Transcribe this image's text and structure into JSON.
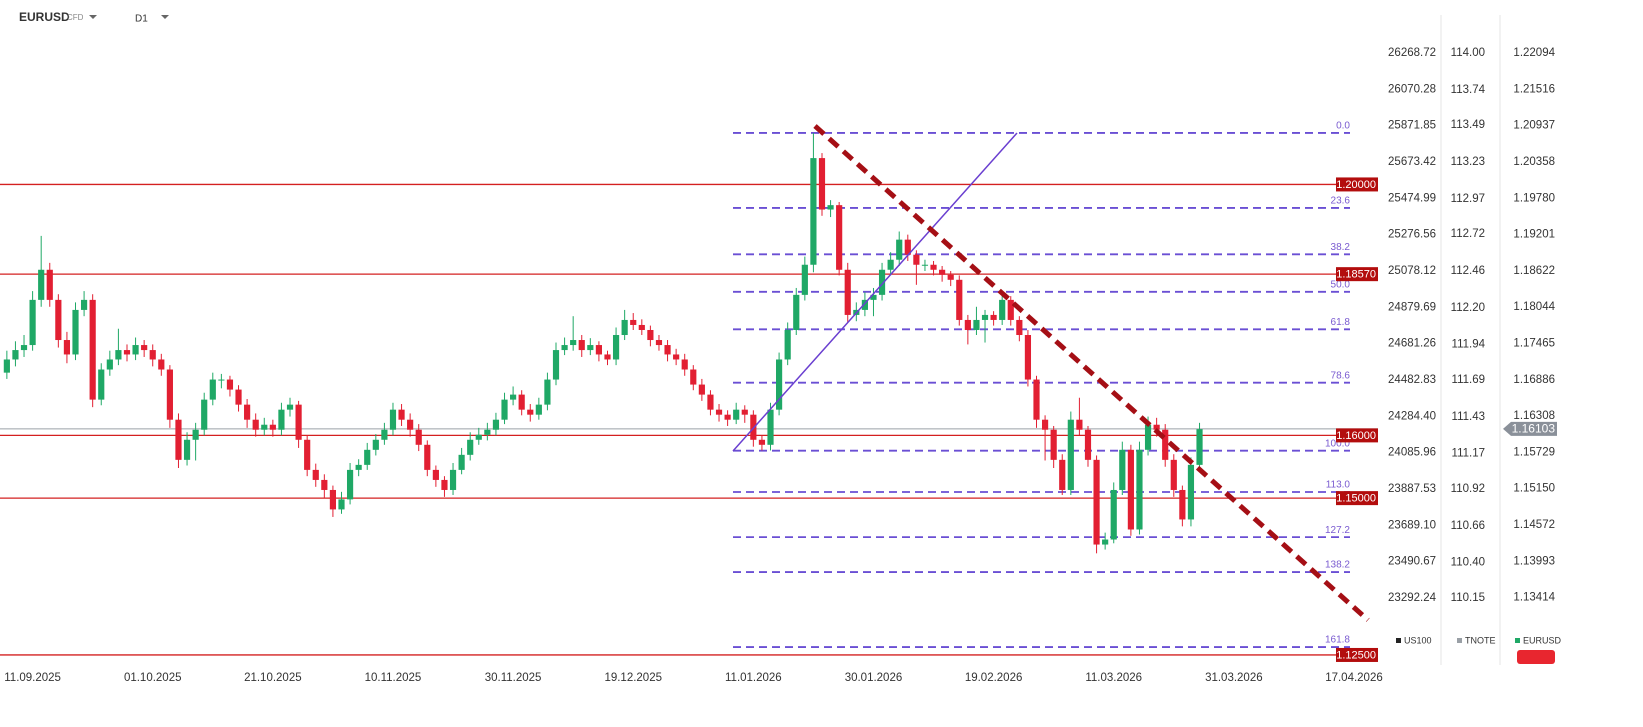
{
  "chart_data": {
    "type": "candlestick",
    "symbol": "EURUSD",
    "symbol_type": "CFD",
    "timeframe": "D1",
    "up_color": "#1fa866",
    "down_color": "#e21f32",
    "xlim": [
      -0.8,
      159.8
    ],
    "xticks": [
      {
        "value": 3,
        "label": "11.09.2025"
      },
      {
        "value": 17,
        "label": "01.10.2025"
      },
      {
        "value": 31,
        "label": "21.10.2025"
      },
      {
        "value": 45,
        "label": "10.11.2025"
      },
      {
        "value": 59,
        "label": "30.11.2025"
      },
      {
        "value": 73,
        "label": "19.12.2025"
      },
      {
        "value": 87,
        "label": "11.01.2026"
      },
      {
        "value": 101,
        "label": "30.01.2026"
      },
      {
        "value": 115,
        "label": "19.02.2026"
      },
      {
        "value": 129,
        "label": "11.03.2026"
      },
      {
        "value": 143,
        "label": "31.03.2026"
      },
      {
        "value": 157,
        "label": "17.04.2026"
      }
    ],
    "ylim": [
      1.1234,
      1.2294
    ],
    "yticks": [
      1.22094,
      1.21516,
      1.20937,
      1.20358,
      {
        "value": 1.1978,
        "label": "1.19780"
      },
      1.19201,
      1.18622,
      1.18044,
      1.17465,
      1.16886,
      1.16308,
      1.15729,
      {
        "value": 1.1515,
        "label": "1.15150"
      },
      1.14572,
      1.13993,
      1.13414
    ],
    "other_axes": [
      {
        "name": "US100",
        "color": "#222222",
        "ylim": [
          22926.3,
          26558.2
        ],
        "ticks": [
          26268.72,
          26070.28,
          25871.85,
          25673.42,
          25474.99,
          25276.56,
          25078.12,
          24879.69,
          24681.26,
          24482.83,
          {
            "value": 24284.4,
            "label": "24284.40"
          },
          24085.96,
          23887.53,
          {
            "value": 23689.1,
            "label": "23689.10"
          },
          23490.67,
          23292.24
        ]
      },
      {
        "name": "TNOTE",
        "color": "#9aa0a6",
        "ylim": [
          109.677,
          114.374
        ],
        "ticks": [
          {
            "value": 114,
            "label": "114.00"
          },
          113.74,
          113.49,
          113.23,
          112.97,
          112.72,
          112.46,
          {
            "value": 112.2,
            "label": "112.20"
          },
          111.94,
          111.69,
          111.43,
          111.17,
          110.92,
          110.66,
          {
            "value": 110.4,
            "label": "110.40"
          },
          110.15
        ]
      }
    ],
    "current_price": 1.16103,
    "levels": [
      {
        "value": 1.2,
        "label": "1.20000"
      },
      {
        "value": 1.1857,
        "label": "1.18570"
      },
      {
        "value": 1.16,
        "label": "1.16000"
      },
      {
        "value": 1.15,
        "label": "1.15000"
      },
      {
        "value": 1.125,
        "label": "1.12500"
      }
    ],
    "fibonacci": {
      "high": 1.20821,
      "low": 1.15756,
      "levels": [
        {
          "value": 0,
          "label": "0.0"
        },
        23.6,
        38.2,
        {
          "value": 50,
          "label": "50.0"
        },
        61.8,
        78.6,
        {
          "value": 100,
          "label": "100.0"
        },
        {
          "value": 113,
          "label": "113.0"
        },
        127.2,
        138.2,
        161.8
      ]
    },
    "candles": [
      [
        1.17,
        1.1735,
        1.169,
        1.1721
      ],
      [
        1.1721,
        1.175,
        1.171,
        1.1736
      ],
      [
        1.1736,
        1.176,
        1.1725,
        1.1744
      ],
      [
        1.1744,
        1.183,
        1.1735,
        1.1816
      ],
      [
        1.1816,
        1.1918,
        1.1805,
        1.1864
      ],
      [
        1.1864,
        1.1875,
        1.1805,
        1.1816
      ],
      [
        1.1816,
        1.1825,
        1.174,
        1.1752
      ],
      [
        1.1752,
        1.1765,
        1.1715,
        1.1729
      ],
      [
        1.1729,
        1.1812,
        1.172,
        1.18
      ],
      [
        1.18,
        1.183,
        1.179,
        1.1816
      ],
      [
        1.1816,
        1.1825,
        1.1645,
        1.1657
      ],
      [
        1.1657,
        1.1715,
        1.1648,
        1.1705
      ],
      [
        1.1705,
        1.1735,
        1.1695,
        1.1721
      ],
      [
        1.1721,
        1.177,
        1.1712,
        1.1736
      ],
      [
        1.1736,
        1.1745,
        1.1718,
        1.1729
      ],
      [
        1.1729,
        1.1756,
        1.172,
        1.1744
      ],
      [
        1.1744,
        1.1752,
        1.1725,
        1.1736
      ],
      [
        1.1736,
        1.1745,
        1.171,
        1.1721
      ],
      [
        1.1721,
        1.173,
        1.1695,
        1.1705
      ],
      [
        1.1705,
        1.1712,
        1.1612,
        1.1625
      ],
      [
        1.1625,
        1.1635,
        1.1548,
        1.1561
      ],
      [
        1.1561,
        1.1605,
        1.1552,
        1.1593
      ],
      [
        1.1593,
        1.162,
        1.156,
        1.1609
      ],
      [
        1.1609,
        1.1668,
        1.16,
        1.1657
      ],
      [
        1.1657,
        1.17,
        1.1648,
        1.1689
      ],
      [
        1.1689,
        1.1698,
        1.1675,
        1.1689
      ],
      [
        1.1689,
        1.1695,
        1.1662,
        1.1673
      ],
      [
        1.1673,
        1.168,
        1.1638,
        1.1649
      ],
      [
        1.1649,
        1.1658,
        1.1612,
        1.1625
      ],
      [
        1.1625,
        1.1635,
        1.1598,
        1.1609
      ],
      [
        1.1609,
        1.1628,
        1.16,
        1.1617
      ],
      [
        1.1617,
        1.1625,
        1.1598,
        1.1609
      ],
      [
        1.1609,
        1.1652,
        1.16,
        1.1641
      ],
      [
        1.1641,
        1.166,
        1.163,
        1.1649
      ],
      [
        1.1649,
        1.1655,
        1.158,
        1.1593
      ],
      [
        1.1593,
        1.16,
        1.1535,
        1.1545
      ],
      [
        1.1545,
        1.1555,
        1.1518,
        1.1529
      ],
      [
        1.1529,
        1.1538,
        1.15,
        1.1513
      ],
      [
        1.1513,
        1.152,
        1.147,
        1.1482
      ],
      [
        1.1482,
        1.151,
        1.1475,
        1.1498
      ],
      [
        1.1498,
        1.1556,
        1.149,
        1.1545
      ],
      [
        1.1545,
        1.1562,
        1.1535,
        1.1553
      ],
      [
        1.1553,
        1.1588,
        1.1545,
        1.1577
      ],
      [
        1.1577,
        1.1602,
        1.1568,
        1.1593
      ],
      [
        1.1593,
        1.162,
        1.1585,
        1.1609
      ],
      [
        1.1609,
        1.1652,
        1.16,
        1.1641
      ],
      [
        1.1641,
        1.165,
        1.1615,
        1.1625
      ],
      [
        1.1625,
        1.1635,
        1.1598,
        1.1609
      ],
      [
        1.1609,
        1.1618,
        1.1575,
        1.1585
      ],
      [
        1.1585,
        1.1592,
        1.1535,
        1.1545
      ],
      [
        1.1545,
        1.1552,
        1.1518,
        1.1529
      ],
      [
        1.1529,
        1.1535,
        1.1502,
        1.1513
      ],
      [
        1.1513,
        1.1556,
        1.1505,
        1.1545
      ],
      [
        1.1545,
        1.158,
        1.1538,
        1.1569
      ],
      [
        1.1569,
        1.1605,
        1.156,
        1.1593
      ],
      [
        1.1593,
        1.1612,
        1.1585,
        1.1601
      ],
      [
        1.1601,
        1.162,
        1.1592,
        1.1609
      ],
      [
        1.1609,
        1.1636,
        1.16,
        1.1625
      ],
      [
        1.1625,
        1.1668,
        1.1618,
        1.1657
      ],
      [
        1.1657,
        1.1678,
        1.1648,
        1.1665
      ],
      [
        1.1665,
        1.1672,
        1.1632,
        1.1641
      ],
      [
        1.1641,
        1.165,
        1.1622,
        1.1633
      ],
      [
        1.1633,
        1.166,
        1.1625,
        1.1649
      ],
      [
        1.1649,
        1.17,
        1.164,
        1.1689
      ],
      [
        1.1689,
        1.1748,
        1.168,
        1.1736
      ],
      [
        1.1736,
        1.1756,
        1.1728,
        1.1744
      ],
      [
        1.1744,
        1.179,
        1.1735,
        1.1752
      ],
      [
        1.1752,
        1.176,
        1.1725,
        1.1736
      ],
      [
        1.1736,
        1.1755,
        1.1728,
        1.1744
      ],
      [
        1.1744,
        1.175,
        1.1718,
        1.1729
      ],
      [
        1.1729,
        1.1735,
        1.1712,
        1.1721
      ],
      [
        1.1721,
        1.1772,
        1.1712,
        1.176
      ],
      [
        1.176,
        1.18,
        1.1752,
        1.1784
      ],
      [
        1.1784,
        1.1795,
        1.1768,
        1.1776
      ],
      [
        1.1776,
        1.1785,
        1.176,
        1.1768
      ],
      [
        1.1768,
        1.1775,
        1.1742,
        1.1752
      ],
      [
        1.1752,
        1.176,
        1.1735,
        1.1744
      ],
      [
        1.1744,
        1.1752,
        1.1718,
        1.1729
      ],
      [
        1.1729,
        1.1738,
        1.1712,
        1.1721
      ],
      [
        1.1721,
        1.173,
        1.1695,
        1.1705
      ],
      [
        1.1705,
        1.1712,
        1.1672,
        1.1681
      ],
      [
        1.1681,
        1.169,
        1.1655,
        1.1665
      ],
      [
        1.1665,
        1.1672,
        1.1632,
        1.1641
      ],
      [
        1.1641,
        1.165,
        1.1622,
        1.1633
      ],
      [
        1.1633,
        1.164,
        1.1615,
        1.1625
      ],
      [
        1.1625,
        1.1652,
        1.1618,
        1.1641
      ],
      [
        1.1641,
        1.1648,
        1.162,
        1.1633
      ],
      [
        1.1633,
        1.164,
        1.1582,
        1.1593
      ],
      [
        1.1593,
        1.16,
        1.1576,
        1.1585
      ],
      [
        1.1585,
        1.1652,
        1.1576,
        1.1641
      ],
      [
        1.1641,
        1.1732,
        1.1632,
        1.1721
      ],
      [
        1.1721,
        1.178,
        1.1712,
        1.1768
      ],
      [
        1.1768,
        1.1835,
        1.176,
        1.1824
      ],
      [
        1.1824,
        1.1885,
        1.1815,
        1.1872
      ],
      [
        1.1872,
        1.2082,
        1.186,
        1.2042
      ],
      [
        1.2042,
        1.205,
        1.195,
        1.196
      ],
      [
        1.196,
        1.1975,
        1.1948,
        1.1967
      ],
      [
        1.1967,
        1.1972,
        1.1855,
        1.1864
      ],
      [
        1.1864,
        1.1875,
        1.178,
        1.1792
      ],
      [
        1.1792,
        1.1812,
        1.1782,
        1.18
      ],
      [
        1.18,
        1.1828,
        1.179,
        1.1816
      ],
      [
        1.1816,
        1.1835,
        1.179,
        1.1824
      ],
      [
        1.1824,
        1.1875,
        1.1815,
        1.1864
      ],
      [
        1.1864,
        1.1892,
        1.1855,
        1.188
      ],
      [
        1.188,
        1.1925,
        1.187,
        1.1912
      ],
      [
        1.1912,
        1.192,
        1.1878,
        1.1888
      ],
      [
        1.1888,
        1.1895,
        1.184,
        1.1872
      ],
      [
        1.1872,
        1.188,
        1.1862,
        1.1872
      ],
      [
        1.1872,
        1.1878,
        1.1855,
        1.1864
      ],
      [
        1.1864,
        1.187,
        1.1845,
        1.1856
      ],
      [
        1.1856,
        1.1862,
        1.1838,
        1.1848
      ],
      [
        1.1848,
        1.1855,
        1.1775,
        1.1784
      ],
      [
        1.1784,
        1.1792,
        1.1745,
        1.1768
      ],
      [
        1.1768,
        1.1805,
        1.176,
        1.1784
      ],
      [
        1.1784,
        1.18,
        1.1748,
        1.1792
      ],
      [
        1.1792,
        1.1798,
        1.1775,
        1.1784
      ],
      [
        1.1784,
        1.1828,
        1.1776,
        1.1816
      ],
      [
        1.1816,
        1.1822,
        1.1775,
        1.1784
      ],
      [
        1.1784,
        1.179,
        1.175,
        1.176
      ],
      [
        1.176,
        1.1768,
        1.1678,
        1.1689
      ],
      [
        1.1689,
        1.1695,
        1.1612,
        1.1625
      ],
      [
        1.1625,
        1.1632,
        1.156,
        1.1609
      ],
      [
        1.1609,
        1.1615,
        1.1548,
        1.1561
      ],
      [
        1.1561,
        1.157,
        1.1505,
        1.1513
      ],
      [
        1.1513,
        1.1638,
        1.1505,
        1.1625
      ],
      [
        1.1625,
        1.166,
        1.16,
        1.1609
      ],
      [
        1.1609,
        1.1615,
        1.155,
        1.1561
      ],
      [
        1.1561,
        1.1568,
        1.1412,
        1.1426
      ],
      [
        1.1426,
        1.1445,
        1.1418,
        1.1434
      ],
      [
        1.1434,
        1.1525,
        1.1428,
        1.1513
      ],
      [
        1.1513,
        1.159,
        1.1505,
        1.1577
      ],
      [
        1.1577,
        1.1585,
        1.144,
        1.145
      ],
      [
        1.145,
        1.159,
        1.1442,
        1.1577
      ],
      [
        1.1577,
        1.163,
        1.1568,
        1.1617
      ],
      [
        1.1617,
        1.1628,
        1.1598,
        1.1609
      ],
      [
        1.1609,
        1.1618,
        1.155,
        1.1561
      ],
      [
        1.1561,
        1.157,
        1.1502,
        1.1513
      ],
      [
        1.1513,
        1.152,
        1.1455,
        1.1466
      ],
      [
        1.1466,
        1.1565,
        1.1455,
        1.1553
      ],
      [
        1.1553,
        1.162,
        1.1545,
        1.161
      ]
    ]
  }
}
